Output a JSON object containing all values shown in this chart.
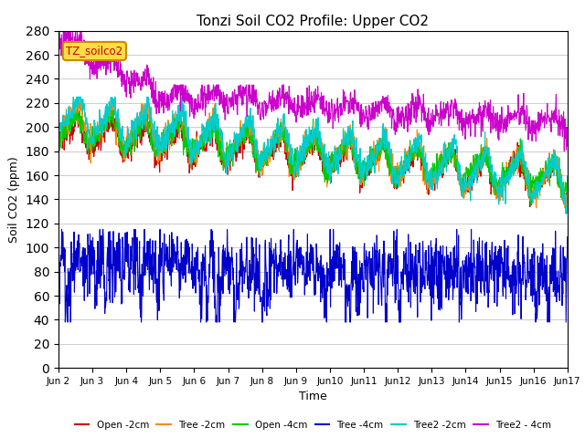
{
  "title": "Tonzi Soil CO2 Profile: Upper CO2",
  "xlabel": "Time",
  "ylabel": "Soil CO2 (ppm)",
  "ylim": [
    0,
    280
  ],
  "yticks": [
    0,
    20,
    40,
    60,
    80,
    100,
    120,
    140,
    160,
    180,
    200,
    220,
    240,
    260,
    280
  ],
  "annotation_text": "TZ_soilco2",
  "annotation_color": "#cc0000",
  "annotation_bg": "#ffdd44",
  "annotation_border": "#cc8800",
  "series_colors": {
    "Open -2cm": "#cc0000",
    "Tree -2cm": "#ff8800",
    "Open -4cm": "#00cc00",
    "Tree -4cm": "#0000cc",
    "Tree2 -2cm": "#00cccc",
    "Tree2 - 4cm": "#cc00cc"
  },
  "background_color": "#ffffff",
  "grid_color": "#cccccc",
  "n_days": 15,
  "points_per_day": 96
}
